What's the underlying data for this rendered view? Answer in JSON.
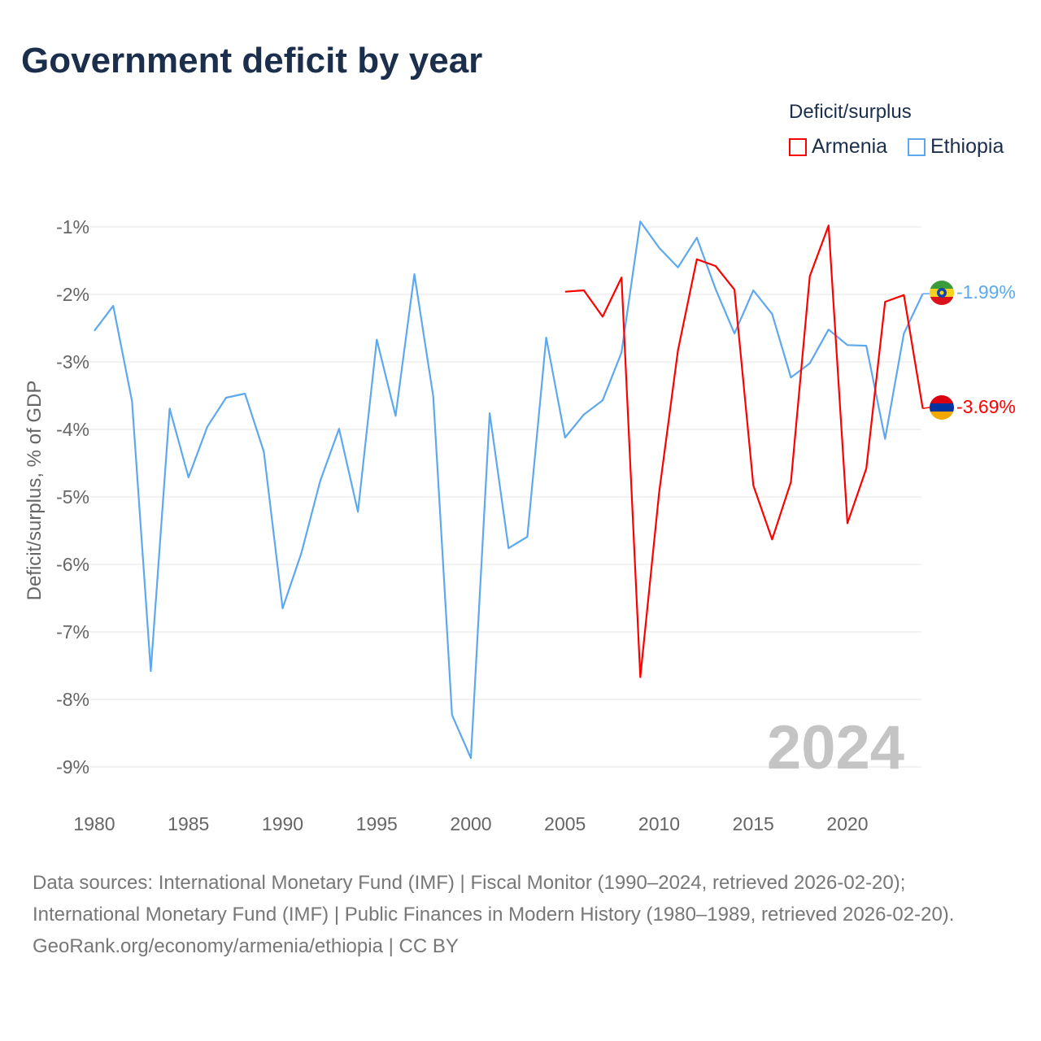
{
  "title": "Government deficit by year",
  "legend": {
    "title": "Deficit/surplus",
    "items": [
      {
        "name": "Armenia",
        "color": "#ff0000"
      },
      {
        "name": "Ethiopia",
        "color": "#5ea8ee"
      }
    ]
  },
  "year_watermark": "2024",
  "footer": {
    "sources": "Data sources: International Monetary Fund (IMF) | Fiscal Monitor (1990–2024, retrieved 2026-02-20); International Monetary Fund (IMF) | Public Finances in Modern History (1980–1989, retrieved 2026-02-20).",
    "credit": "GeoRank.org/economy/armenia/ethiopia | CC BY"
  },
  "chart_data": {
    "type": "line",
    "title": "Government deficit by year",
    "xlabel": "",
    "ylabel": "Deficit/surplus, % of GDP",
    "xlim": [
      1980,
      2024
    ],
    "ylim": [
      -9.4,
      -0.9
    ],
    "x_ticks": [
      1980,
      1985,
      1990,
      1995,
      2000,
      2005,
      2010,
      2015,
      2020
    ],
    "x_tick_labels": [
      "1980",
      "1985",
      "1990",
      "1995",
      "2000",
      "2005",
      "2010",
      "2015",
      "2020"
    ],
    "y_ticks": [
      -1,
      -2,
      -3,
      -4,
      -5,
      -6,
      -7,
      -8,
      -9
    ],
    "y_tick_labels": [
      "-1%",
      "-2%",
      "-3%",
      "-4%",
      "-5%",
      "-6%",
      "-7%",
      "-8%",
      "-9%"
    ],
    "grid": true,
    "legend_position": "top-right",
    "series": [
      {
        "name": "Ethiopia",
        "color": "#5ea8ee",
        "end_label": "-1.99%",
        "x": [
          1980,
          1981,
          1982,
          1983,
          1984,
          1985,
          1986,
          1987,
          1988,
          1989,
          1990,
          1991,
          1992,
          1993,
          1994,
          1995,
          1996,
          1997,
          1998,
          1999,
          2000,
          2001,
          2002,
          2003,
          2004,
          2005,
          2006,
          2007,
          2008,
          2009,
          2010,
          2011,
          2012,
          2013,
          2014,
          2015,
          2016,
          2017,
          2018,
          2019,
          2020,
          2021,
          2022,
          2023,
          2024
        ],
        "values": [
          -2.54,
          -2.17,
          -3.58,
          -7.58,
          -3.69,
          -4.71,
          -3.96,
          -3.53,
          -3.47,
          -4.33,
          -6.65,
          -5.83,
          -4.76,
          -3.99,
          -5.22,
          -2.67,
          -3.8,
          -1.7,
          -3.51,
          -8.23,
          -8.87,
          -3.76,
          -5.76,
          -5.59,
          -2.64,
          -4.12,
          -3.78,
          -3.57,
          -2.86,
          -0.92,
          -1.31,
          -1.6,
          -1.16,
          -1.92,
          -2.58,
          -1.94,
          -2.29,
          -3.23,
          -3.02,
          -2.52,
          -2.75,
          -2.76,
          -4.14,
          -2.58,
          -1.99
        ]
      },
      {
        "name": "Armenia",
        "color": "#ff0000",
        "end_label": "-3.69%",
        "x": [
          2005,
          2006,
          2007,
          2008,
          2009,
          2010,
          2011,
          2012,
          2013,
          2014,
          2015,
          2016,
          2017,
          2018,
          2019,
          2020,
          2021,
          2022,
          2023,
          2024
        ],
        "values": [
          -1.96,
          -1.94,
          -2.33,
          -1.75,
          -7.67,
          -4.93,
          -2.83,
          -1.48,
          -1.58,
          -1.93,
          -4.83,
          -5.63,
          -4.78,
          -1.73,
          -0.98,
          -5.39,
          -4.58,
          -2.11,
          -2.01,
          -3.69
        ]
      }
    ]
  }
}
